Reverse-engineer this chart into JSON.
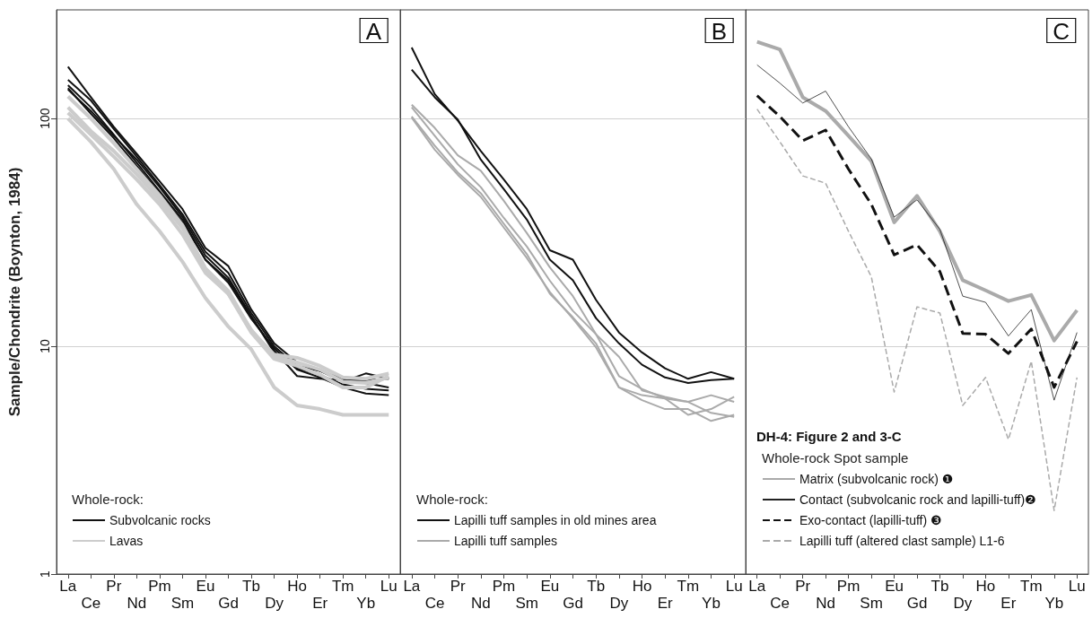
{
  "chart_data": [
    {
      "type": "line",
      "title": "A",
      "ylabel": "Sample/Chondrite (Boynton, 1984)",
      "legend_title": "Whole-rock:",
      "categories": [
        "La",
        "Ce",
        "Pr",
        "Nd",
        "Pm",
        "Sm",
        "Eu",
        "Gd",
        "Tb",
        "Dy",
        "Ho",
        "Er",
        "Tm",
        "Yb",
        "Lu"
      ],
      "log": "y",
      "ylim": [
        1,
        300
      ],
      "yticks": [
        1,
        10,
        100
      ],
      "grid": "y",
      "legend": "bottom left",
      "series": [
        {
          "name": "Subvolcanic rocks",
          "color": "#111111",
          "values": [
            169,
            124,
            92,
            70,
            53,
            40,
            27,
            22.5,
            14.5,
            10.3,
            8.5,
            7.8,
            7.2,
            6.9,
            6.6
          ]
        },
        {
          "color": "#111111",
          "values": [
            148,
            120,
            90,
            68,
            51,
            38,
            26,
            21,
            14,
            10,
            8.2,
            7.8,
            7,
            7.6,
            7.2
          ]
        },
        {
          "color": "#111111",
          "values": [
            140,
            112,
            85,
            64,
            48,
            36,
            24,
            19.5,
            13.5,
            9.6,
            7.4,
            7.2,
            7.1,
            7.1,
            7.2
          ]
        },
        {
          "color": "#111111",
          "values": [
            136,
            105,
            82,
            62,
            47,
            35,
            24,
            19,
            13.2,
            9.8,
            7.9,
            7.3,
            6.6,
            6.2,
            6.1
          ]
        },
        {
          "color": "#111111",
          "values": [
            134,
            108,
            84,
            66,
            50,
            37,
            25,
            20,
            13.6,
            9.4,
            8,
            7.5,
            6.8,
            6.5,
            6.4
          ]
        },
        {
          "name": "Lavas",
          "color": "#cccccc",
          "values": [
            125,
            100,
            78,
            60,
            46,
            34,
            22,
            17.5,
            11.7,
            9.2,
            8.9,
            8.2,
            7.3,
            7.2,
            7.6
          ]
        },
        {
          "color": "#cccccc",
          "values": [
            112,
            88,
            72,
            57,
            44,
            33,
            21.5,
            17,
            11.5,
            8.8,
            8.2,
            7.5,
            6.6,
            6.6,
            7.4
          ]
        },
        {
          "color": "#cccccc",
          "values": [
            106,
            85,
            68,
            54,
            42,
            31,
            21,
            17,
            11.8,
            9,
            8.5,
            7.9,
            7,
            6.9,
            7.3
          ]
        },
        {
          "color": "#cccccc",
          "values": [
            100,
            79,
            60,
            42,
            32,
            23.5,
            16.3,
            12.2,
            9.7,
            6.6,
            5.5,
            5.3,
            5,
            5,
            5
          ]
        }
      ]
    },
    {
      "type": "line",
      "title": "B",
      "legend_title": "Whole-rock:",
      "categories": [
        "La",
        "Ce",
        "Pr",
        "Nd",
        "Pm",
        "Sm",
        "Eu",
        "Gd",
        "Tb",
        "Dy",
        "Ho",
        "Er",
        "Tm",
        "Yb",
        "Lu"
      ],
      "log": "y",
      "ylim": [
        1,
        300
      ],
      "yticks": [
        1,
        10,
        100
      ],
      "grid": "y",
      "legend": "bottom left",
      "tick_labels": "x",
      "series": [
        {
          "name": "Lapilli tuff samples in old mines area",
          "color": "#111111",
          "values": [
            205,
            128,
            98,
            72,
            54,
            40,
            26.4,
            24,
            16,
            11.5,
            9.4,
            8,
            7.2,
            7.7,
            7.2
          ]
        },
        {
          "color": "#111111",
          "values": [
            164,
            124,
            99,
            66,
            49,
            36,
            24,
            19.5,
            13.3,
            10.3,
            8.3,
            7.3,
            6.9,
            7.1,
            7.2
          ]
        },
        {
          "name": "Lapilli tuff samples",
          "color": "#aaaaaa",
          "values": [
            115,
            91,
            69,
            59,
            43.5,
            31.4,
            22.2,
            16.6,
            11.3,
            9,
            6.4,
            6,
            5.7,
            6.1,
            5.7
          ]
        },
        {
          "color": "#aaaaaa",
          "values": [
            112,
            84,
            63,
            50,
            36.6,
            27.4,
            19.4,
            14.3,
            11.3,
            7.4,
            6.5,
            5.9,
            5,
            5.3,
            6
          ]
        },
        {
          "color": "#aaaaaa",
          "values": [
            102,
            76,
            58,
            47,
            34.5,
            25.4,
            17,
            13.4,
            10.3,
            6.6,
            6.1,
            5.9,
            5.7,
            5.1,
            4.9
          ]
        },
        {
          "color": "#aaaaaa",
          "values": [
            101,
            73,
            56.6,
            45.3,
            33.2,
            24.4,
            17.3,
            13.2,
            9.9,
            6.6,
            5.8,
            5.3,
            5.3,
            4.7,
            5
          ]
        }
      ]
    },
    {
      "type": "line",
      "title": "C",
      "subtitle": "DH-4: Figure 2 and 3-C",
      "legend_title": "Whole-rock Spot sample",
      "categories": [
        "La",
        "Ce",
        "Pr",
        "Nd",
        "Pm",
        "Sm",
        "Eu",
        "Gd",
        "Tb",
        "Dy",
        "Ho",
        "Er",
        "Tm",
        "Yb",
        "Lu"
      ],
      "log": "y",
      "ylim": [
        1,
        300
      ],
      "yticks": [
        1,
        10,
        100
      ],
      "grid": "y",
      "legend": "bottom left",
      "tick_labels": "x",
      "series": [
        {
          "name": "Matrix (subvolcanic rock) ❶",
          "color": "#aaaaaa",
          "values": [
            217,
            201,
            124,
            108,
            84,
            65,
            35,
            45.8,
            32,
            19.5,
            17.6,
            15.8,
            16.8,
            10.6,
            14.4
          ]
        },
        {
          "name": "Contact (subvolcanic rock and lapilli-tuff)❷",
          "color": "#222222",
          "values": [
            172,
            143,
            117,
            132,
            92,
            66.5,
            36.9,
            44,
            32.6,
            16.6,
            15.6,
            11.1,
            14.5,
            5.8,
            11.5
          ]
        },
        {
          "name": "Exo-contact (lapilli-tuff) ❸",
          "color": "#111111",
          "line_style": "dashed",
          "values": [
            126,
            102,
            80,
            89,
            60,
            42,
            25.2,
            27.9,
            21.3,
            11.4,
            11.3,
            9.3,
            11.9,
            6.6,
            10.5
          ]
        },
        {
          "name": "Lapilli tuff (altered clast sample) L1-6",
          "color": "#aaaaaa",
          "line_style": "dashed",
          "values": [
            110,
            79,
            56,
            52,
            32,
            20.2,
            6.3,
            14.9,
            14,
            5.5,
            7.3,
            3.9,
            8.6,
            1.9,
            7.3
          ]
        }
      ]
    }
  ]
}
